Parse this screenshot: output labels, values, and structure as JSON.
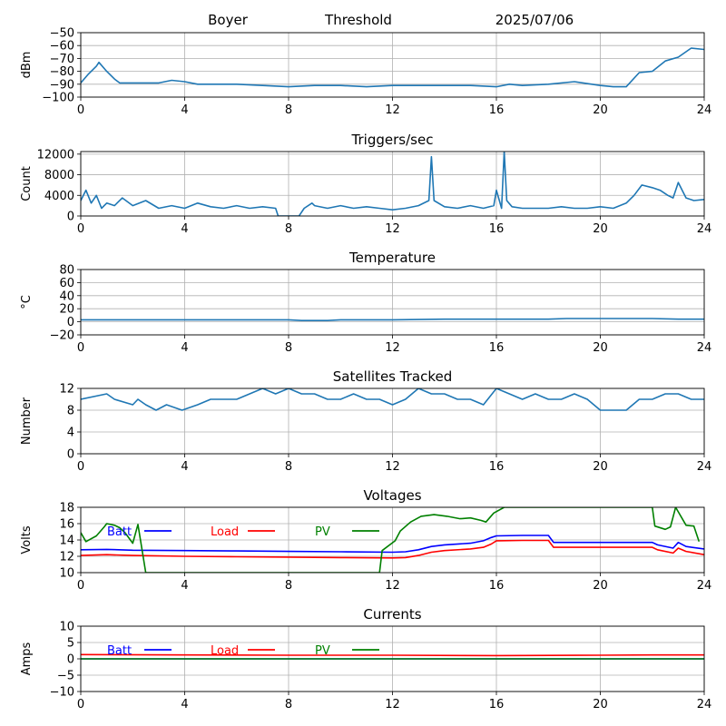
{
  "header": {
    "station": "Boyer",
    "mode": "Threshold",
    "date": "2025/07/06"
  },
  "colors": {
    "series": "#1f77b4",
    "grid": "#b0b0b0",
    "batt": "#0000ff",
    "load": "#ff0000",
    "pv": "#008000"
  },
  "chart_data": [
    {
      "type": "line",
      "title": "",
      "ylabel": "dBm",
      "xlim": [
        0,
        24
      ],
      "ylim": [
        -100,
        -50
      ],
      "xticks": [
        0,
        4,
        8,
        12,
        16,
        20,
        24
      ],
      "yticks": [
        -100,
        -90,
        -80,
        -70,
        -60,
        -50
      ],
      "grid": true,
      "series": [
        {
          "color": "#1f77b4",
          "x": [
            0,
            0.3,
            0.6,
            0.7,
            1.0,
            1.3,
            1.5,
            2,
            3,
            3.5,
            4,
            4.5,
            5,
            6,
            7,
            8,
            9,
            10,
            11,
            12,
            13,
            14,
            15,
            16,
            16.5,
            17,
            18,
            19,
            20,
            20.5,
            21,
            21.5,
            22,
            22.5,
            23,
            23.5,
            24
          ],
          "y": [
            -89,
            -82,
            -76,
            -73,
            -80,
            -86,
            -89,
            -89,
            -89,
            -87,
            -88,
            -90,
            -90,
            -90,
            -91,
            -92,
            -91,
            -91,
            -92,
            -91,
            -91,
            -91,
            -91,
            -92,
            -90,
            -91,
            -90,
            -88,
            -91,
            -92,
            -92,
            -81,
            -80,
            -72,
            -69,
            -62,
            -63
          ]
        }
      ]
    },
    {
      "type": "line",
      "title": "Triggers/sec",
      "ylabel": "Count",
      "xlim": [
        0,
        24
      ],
      "ylim": [
        0,
        12500
      ],
      "xticks": [
        0,
        4,
        8,
        12,
        16,
        20,
        24
      ],
      "yticks": [
        0,
        4000,
        8000,
        12000
      ],
      "grid": true,
      "series": [
        {
          "color": "#1f77b4",
          "x": [
            0,
            0.2,
            0.4,
            0.6,
            0.8,
            1.0,
            1.3,
            1.6,
            2,
            2.5,
            3,
            3.5,
            4,
            4.5,
            5,
            5.5,
            6,
            6.5,
            7,
            7.5,
            7.6,
            8,
            8.4,
            8.6,
            8.9,
            9,
            9.5,
            10,
            10.5,
            11,
            11.5,
            12,
            12.5,
            13,
            13.4,
            13.5,
            13.6,
            14,
            14.5,
            15,
            15.5,
            15.9,
            16,
            16.2,
            16.3,
            16.4,
            16.6,
            17,
            17.5,
            18,
            18.5,
            19,
            19.5,
            20,
            20.5,
            21,
            21.3,
            21.6,
            22,
            22.3,
            22.6,
            22.8,
            23,
            23.3,
            23.6,
            24
          ],
          "y": [
            3000,
            5000,
            2500,
            4000,
            1500,
            2500,
            2000,
            3500,
            2000,
            3000,
            1500,
            2000,
            1500,
            2500,
            1800,
            1500,
            2000,
            1500,
            1800,
            1500,
            0,
            0,
            0,
            1500,
            2500,
            2000,
            1500,
            2000,
            1500,
            1800,
            1500,
            1200,
            1500,
            2000,
            3000,
            11500,
            3000,
            1800,
            1500,
            2000,
            1500,
            2000,
            5000,
            1500,
            12500,
            3000,
            1800,
            1500,
            1500,
            1500,
            1800,
            1500,
            1500,
            1800,
            1500,
            2500,
            4000,
            6000,
            5500,
            5000,
            4000,
            3500,
            6500,
            3500,
            3000,
            3200
          ]
        }
      ]
    },
    {
      "type": "line",
      "title": "Temperature",
      "ylabel": "°C",
      "xlim": [
        0,
        24
      ],
      "ylim": [
        -20,
        80
      ],
      "xticks": [
        0,
        4,
        8,
        12,
        16,
        20,
        24
      ],
      "yticks": [
        -20,
        0,
        20,
        40,
        60,
        80
      ],
      "grid": true,
      "series": [
        {
          "color": "#1f77b4",
          "x": [
            0,
            8,
            8.5,
            9.5,
            10,
            12,
            14,
            16,
            18,
            18.7,
            20,
            22,
            23,
            24
          ],
          "y": [
            3,
            3,
            2,
            2,
            3,
            3,
            4,
            4,
            4,
            5,
            5,
            5,
            4,
            4
          ]
        }
      ]
    },
    {
      "type": "line",
      "title": "Satellites Tracked",
      "ylabel": "Number",
      "xlim": [
        0,
        24
      ],
      "ylim": [
        0,
        12
      ],
      "xticks": [
        0,
        4,
        8,
        12,
        16,
        20,
        24
      ],
      "yticks": [
        0,
        4,
        8,
        12
      ],
      "grid": true,
      "series": [
        {
          "color": "#1f77b4",
          "x": [
            0,
            1,
            1.3,
            2,
            2.2,
            2.5,
            2.9,
            3.3,
            3.9,
            4.5,
            5,
            5.5,
            6,
            6.5,
            7,
            7.5,
            8,
            8.5,
            9,
            9.5,
            10,
            10.5,
            11,
            11.5,
            12,
            12.5,
            13,
            13.5,
            14,
            14.5,
            15,
            15.5,
            16,
            16.5,
            17,
            17.5,
            18,
            18.5,
            19,
            19.5,
            20,
            20.5,
            21,
            21.5,
            22,
            22.5,
            23,
            23.5,
            24
          ],
          "y": [
            10,
            11,
            10,
            9,
            10,
            9,
            8,
            9,
            8,
            9,
            10,
            10,
            10,
            11,
            12,
            11,
            12,
            11,
            11,
            10,
            10,
            11,
            10,
            10,
            9,
            10,
            12,
            11,
            11,
            10,
            10,
            9,
            12,
            11,
            10,
            11,
            10,
            10,
            11,
            10,
            8,
            8,
            8,
            10,
            10,
            11,
            11,
            10,
            10
          ]
        }
      ]
    },
    {
      "type": "line",
      "title": "Voltages",
      "ylabel": "Volts",
      "xlim": [
        0,
        24
      ],
      "ylim": [
        10,
        18
      ],
      "xticks": [
        0,
        4,
        8,
        12,
        16,
        20,
        24
      ],
      "yticks": [
        10,
        12,
        14,
        16,
        18
      ],
      "grid": true,
      "legend": {
        "placement": "top-left",
        "entries": [
          "Batt",
          "Load",
          "PV"
        ]
      },
      "series": [
        {
          "name": "Batt",
          "color": "#0000ff",
          "x": [
            0,
            1,
            2,
            4,
            6,
            8,
            10,
            12,
            12.5,
            13,
            13.5,
            14,
            15,
            15.5,
            15.8,
            16,
            17,
            18,
            18.2,
            20,
            22,
            22.2,
            22.8,
            23,
            23.3,
            24
          ],
          "y": [
            12.8,
            12.85,
            12.75,
            12.7,
            12.65,
            12.6,
            12.55,
            12.5,
            12.55,
            12.8,
            13.2,
            13.4,
            13.6,
            13.9,
            14.3,
            14.5,
            14.55,
            14.55,
            13.7,
            13.7,
            13.7,
            13.4,
            13.0,
            13.7,
            13.2,
            12.9
          ]
        },
        {
          "name": "Load",
          "color": "#ff0000",
          "x": [
            0,
            1,
            2,
            4,
            6,
            8,
            10,
            12,
            12.5,
            13,
            13.5,
            14,
            15,
            15.5,
            15.8,
            16,
            17,
            18,
            18.2,
            20,
            22,
            22.2,
            22.8,
            23,
            23.3,
            24
          ],
          "y": [
            12.1,
            12.2,
            12.1,
            12.0,
            11.95,
            11.9,
            11.85,
            11.8,
            11.85,
            12.1,
            12.5,
            12.7,
            12.9,
            13.1,
            13.5,
            13.9,
            13.95,
            13.95,
            13.1,
            13.1,
            13.1,
            12.8,
            12.4,
            13.0,
            12.6,
            12.2
          ]
        },
        {
          "name": "PV",
          "color": "#008000",
          "x": [
            0,
            0.2,
            0.6,
            0.9,
            1.0,
            1.3,
            1.5,
            1.7,
            2.0,
            2.2,
            2.5,
            11.5,
            11.6,
            12.1,
            12.3,
            12.7,
            13.1,
            13.6,
            14.1,
            14.6,
            15.0,
            15.4,
            15.6,
            15.9,
            16.3,
            22.0,
            22.1,
            22.5,
            22.7,
            22.9,
            23.3,
            23.6,
            23.8
          ],
          "y": [
            14.9,
            13.8,
            14.5,
            15.6,
            16.0,
            15.8,
            15.5,
            14.9,
            13.6,
            15.9,
            10.0,
            10.0,
            12.7,
            13.9,
            15.1,
            16.2,
            16.9,
            17.1,
            16.9,
            16.6,
            16.7,
            16.4,
            16.2,
            17.3,
            18.0,
            18.0,
            15.7,
            15.3,
            15.6,
            18.0,
            15.8,
            15.7,
            13.8
          ]
        }
      ]
    },
    {
      "type": "line",
      "title": "Currents",
      "ylabel": "Amps",
      "xlim": [
        0,
        24
      ],
      "ylim": [
        -10,
        10
      ],
      "xticks": [
        0,
        4,
        8,
        12,
        16,
        20,
        24
      ],
      "yticks": [
        -10,
        -5,
        0,
        5,
        10
      ],
      "grid": true,
      "legend": {
        "placement": "top-left",
        "entries": [
          "Batt",
          "Load",
          "PV"
        ]
      },
      "series": [
        {
          "name": "Batt",
          "color": "#0000ff",
          "x": [
            0,
            24
          ],
          "y": [
            0,
            0
          ]
        },
        {
          "name": "Load",
          "color": "#ff0000",
          "x": [
            0,
            4,
            8,
            12,
            16,
            20,
            22,
            24
          ],
          "y": [
            1.3,
            1.2,
            1.1,
            1.1,
            1.0,
            1.1,
            1.2,
            1.2
          ]
        },
        {
          "name": "PV",
          "color": "#008000",
          "x": [
            0,
            24
          ],
          "y": [
            0,
            0
          ]
        }
      ]
    }
  ]
}
